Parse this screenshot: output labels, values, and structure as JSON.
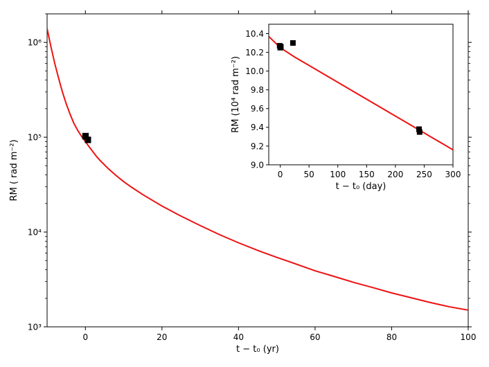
{
  "chart_data": [
    {
      "type": "line",
      "xlabel": "t − t₀ (yr)",
      "ylabel": "RM ( rad m⁻²)",
      "xlim": [
        -10,
        100
      ],
      "ylim": [
        1000,
        2000000
      ],
      "yscale": "log",
      "x_ticks": [
        0,
        20,
        40,
        60,
        80,
        100
      ],
      "x_tick_labels": [
        "0",
        "20",
        "40",
        "60",
        "80",
        "100"
      ],
      "y_ticks": [
        1000,
        10000,
        100000,
        1000000
      ],
      "y_tick_labels": [
        "10³",
        "10⁴",
        "10⁵",
        "10⁶"
      ],
      "series": [
        {
          "kind": "line",
          "color": "#ee1111",
          "x": [
            -10,
            -9,
            -8,
            -7,
            -6,
            -5,
            -4,
            -3,
            -2,
            -1,
            0,
            1,
            2,
            3,
            4,
            5,
            6,
            8,
            10,
            12,
            15,
            20,
            25,
            30,
            35,
            40,
            45,
            50,
            55,
            60,
            65,
            70,
            75,
            80,
            85,
            90,
            95,
            100
          ],
          "y": [
            1400000,
            900000,
            600000,
            420000,
            300000,
            225000,
            175000,
            140000,
            118000,
            102000,
            90000,
            79000,
            70000,
            62000,
            56000,
            51000,
            46500,
            39500,
            34000,
            29800,
            24800,
            18800,
            14700,
            11700,
            9400,
            7700,
            6400,
            5400,
            4600,
            3900,
            3400,
            2950,
            2600,
            2280,
            2030,
            1810,
            1630,
            1500
          ]
        },
        {
          "kind": "scatter",
          "color": "#000000",
          "x": [
            0.0,
            0.06,
            0.66,
            0.67
          ],
          "y": [
            102000,
            103000,
            94000,
            93500
          ]
        }
      ]
    },
    {
      "type": "line",
      "xlabel": "t − t₀ (day)",
      "ylabel": "RM (10⁴ rad m⁻²)",
      "xlim": [
        -20,
        300
      ],
      "ylim": [
        9.0,
        10.5
      ],
      "x_ticks": [
        0,
        50,
        100,
        150,
        200,
        250,
        300
      ],
      "x_tick_labels": [
        "0",
        "50",
        "100",
        "150",
        "200",
        "250",
        "300"
      ],
      "y_ticks": [
        9.0,
        9.2,
        9.4,
        9.6,
        9.8,
        10.0,
        10.2,
        10.4
      ],
      "y_tick_labels": [
        "9.0",
        "9.2",
        "9.4",
        "9.6",
        "9.8",
        "10.0",
        "10.2",
        "10.4"
      ],
      "series": [
        {
          "kind": "line",
          "color": "#ee1111",
          "x": [
            -20,
            0,
            25,
            50,
            100,
            150,
            200,
            250,
            300
          ],
          "y": [
            10.37,
            10.25,
            10.15,
            10.06,
            9.88,
            9.7,
            9.52,
            9.34,
            9.16
          ]
        },
        {
          "kind": "scatter",
          "color": "#000000",
          "x": [
            -1,
            0,
            1,
            22,
            241,
            242
          ],
          "y": [
            10.27,
            10.25,
            10.26,
            10.3,
            9.38,
            9.35
          ]
        }
      ]
    }
  ]
}
